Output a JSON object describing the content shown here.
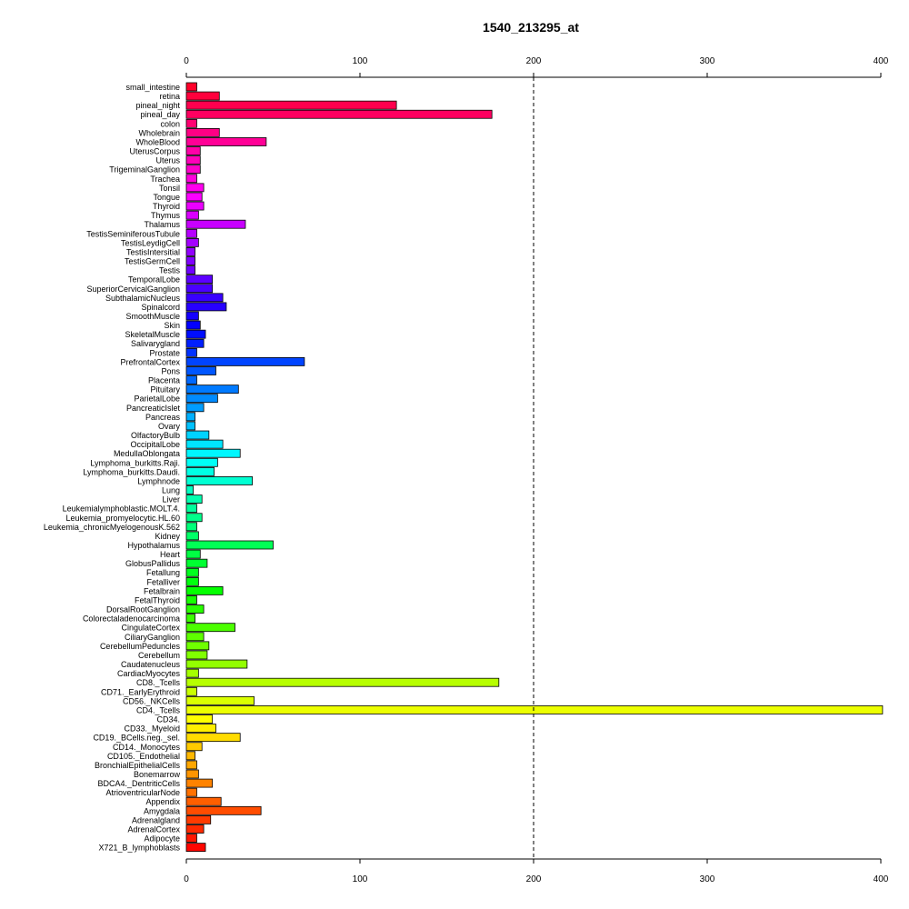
{
  "chart_data": {
    "type": "bar",
    "orientation": "horizontal",
    "title": "1540_213295_at",
    "xlabel": "",
    "ylabel": "",
    "xlim": [
      0,
      400
    ],
    "x_ticks": [
      0,
      100,
      200,
      300,
      400
    ],
    "x_tick_labels": [
      "0",
      "100",
      "200",
      "300",
      "400"
    ],
    "reference_line": 200,
    "grid": false,
    "bar_colors": "rainbow hue gradient from top (red) through magenta, blue, cyan, green, yellow, orange back to red at bottom",
    "categories": [
      "small_intestine",
      "retina",
      "pineal_night",
      "pineal_day",
      "colon",
      "Wholebrain",
      "WholeBlood",
      "UterusCorpus",
      "Uterus",
      "TrigeminalGanglion",
      "Trachea",
      "Tonsil",
      "Tongue",
      "Thyroid",
      "Thymus",
      "Thalamus",
      "TestisSeminiferousTubule",
      "TestisLeydigCell",
      "TestisIntersitial",
      "TestisGermCell",
      "Testis",
      "TemporalLobe",
      "SuperiorCervicalGanglion",
      "SubthalamicNucleus",
      "Spinalcord",
      "SmoothMuscle",
      "Skin",
      "SkeletalMuscle",
      "Salivarygland",
      "Prostate",
      "PrefrontalCortex",
      "Pons",
      "Placenta",
      "Pituitary",
      "ParietalLobe",
      "PancreaticIslet",
      "Pancreas",
      "Ovary",
      "OlfactoryBulb",
      "OccipitalLobe",
      "MedullaOblongata",
      "Lymphoma_burkitts.Raji.",
      "Lymphoma_burkitts.Daudi.",
      "Lymphnode",
      "Lung",
      "Liver",
      "Leukemialymphoblastic.MOLT.4.",
      "Leukemia_promyelocytic.HL.60",
      "Leukemia_chronicMyelogenousK.562",
      "Kidney",
      "Hypothalamus",
      "Heart",
      "GlobusPallidus",
      "Fetallung",
      "Fetalliver",
      "Fetalbrain",
      "FetalThyroid",
      "DorsalRootGanglion",
      "Colorectaladenocarcinoma",
      "CingulateCortex",
      "CiliaryGanglion",
      "CerebellumPeduncles",
      "Cerebellum",
      "Caudatenucleus",
      "CardiacMyocytes",
      "CD8._Tcells",
      "CD71._EarlyErythroid",
      "CD56._NKCells",
      "CD4._Tcells",
      "CD34.",
      "CD33._Myeloid",
      "CD19._BCells.neg._sel.",
      "CD14._Monocytes",
      "CD105._Endothelial",
      "BronchialEpithelialCells",
      "Bonemarrow",
      "BDCA4._DentriticCells",
      "AtrioventricularNode",
      "Appendix",
      "Amygdala",
      "Adrenalgland",
      "AdrenalCortex",
      "Adipocyte",
      "X721_B_lymphoblasts"
    ],
    "values": [
      6,
      19,
      121,
      176,
      6,
      19,
      46,
      8,
      8,
      8,
      6,
      10,
      9,
      10,
      7,
      34,
      6,
      7,
      5,
      5,
      5,
      15,
      15,
      21,
      23,
      7,
      8,
      11,
      10,
      6,
      68,
      17,
      6,
      30,
      18,
      10,
      5,
      5,
      13,
      21,
      31,
      18,
      16,
      38,
      4,
      9,
      6,
      9,
      6,
      7,
      50,
      8,
      12,
      7,
      7,
      21,
      6,
      10,
      5,
      28,
      10,
      13,
      12,
      35,
      7,
      180,
      6,
      39,
      401,
      15,
      17,
      31,
      9,
      5,
      6,
      7,
      15,
      6,
      20,
      43,
      14,
      10,
      6,
      11
    ]
  }
}
